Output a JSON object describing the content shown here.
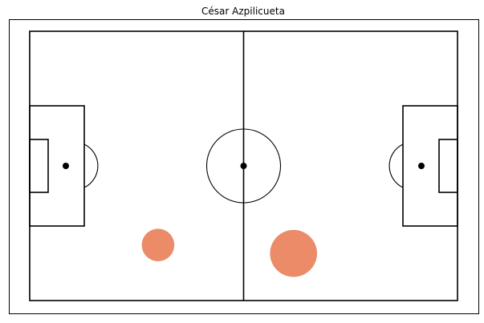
{
  "chart_data": {
    "type": "scatter",
    "title": "César Azpilicueta",
    "xlabel": "",
    "ylabel": "",
    "xlim": [
      0,
      120
    ],
    "ylim": [
      0,
      80
    ],
    "axes_visible": false,
    "grid": false,
    "legend": "none",
    "pitch": {
      "length": 120,
      "width": 80,
      "line_color": "#000000",
      "background": "#ffffff"
    },
    "series": [
      {
        "color": "#E8774D",
        "opacity": 0.85,
        "points": [
          {
            "x": 36,
            "y": 16.5,
            "size": 9
          },
          {
            "x": 74,
            "y": 14,
            "size": 13
          }
        ]
      }
    ]
  }
}
